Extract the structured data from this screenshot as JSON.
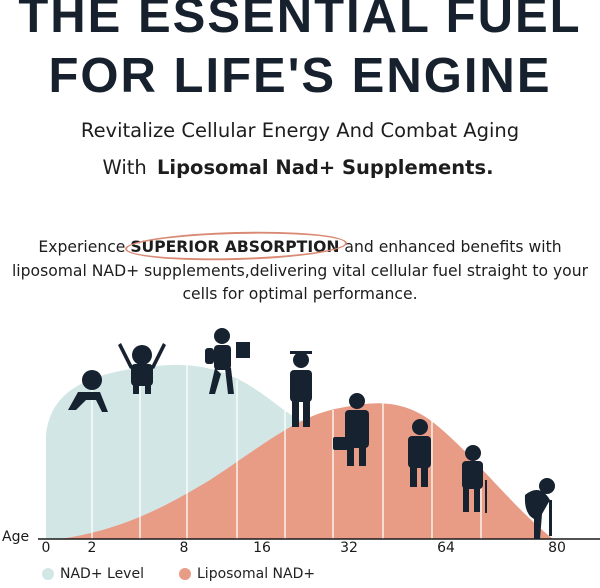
{
  "headline": {
    "line1": "THE ESSENTIAL FUEL",
    "line2": "FOR LIFE'S ENGINE"
  },
  "subtitle": {
    "line1": "Revitalize Cellular Energy And Combat Aging",
    "line2_prefix": "With ",
    "line2_highlight": "Liposomal Nad+ Supplements."
  },
  "paragraph": {
    "prefix": "Experience ",
    "emphasis": "SUPERIOR ABSORPTION",
    "suffix": " and enhanced benefits with liposomal NAD+ supplements,delivering vital cellular fuel straight to your cells for optimal performance."
  },
  "chart": {
    "axis_label": "Age",
    "ticks": [
      "0",
      "2",
      "8",
      "16",
      "32",
      "64",
      "80"
    ],
    "legend": [
      {
        "label": "NAD+ Level",
        "color": "#d3e6e6"
      },
      {
        "label": "Liposomal NAD+",
        "color": "#e89c85"
      }
    ],
    "figures": [
      "baby-crawling",
      "toddler",
      "student",
      "graduate",
      "businessman",
      "adult",
      "elder-with-cane",
      "elderly-bent-with-cane"
    ]
  },
  "colors": {
    "headline": "#17212e",
    "accent": "#e89c85",
    "nad_level": "#d3e6e6",
    "figure": "#16222f"
  }
}
